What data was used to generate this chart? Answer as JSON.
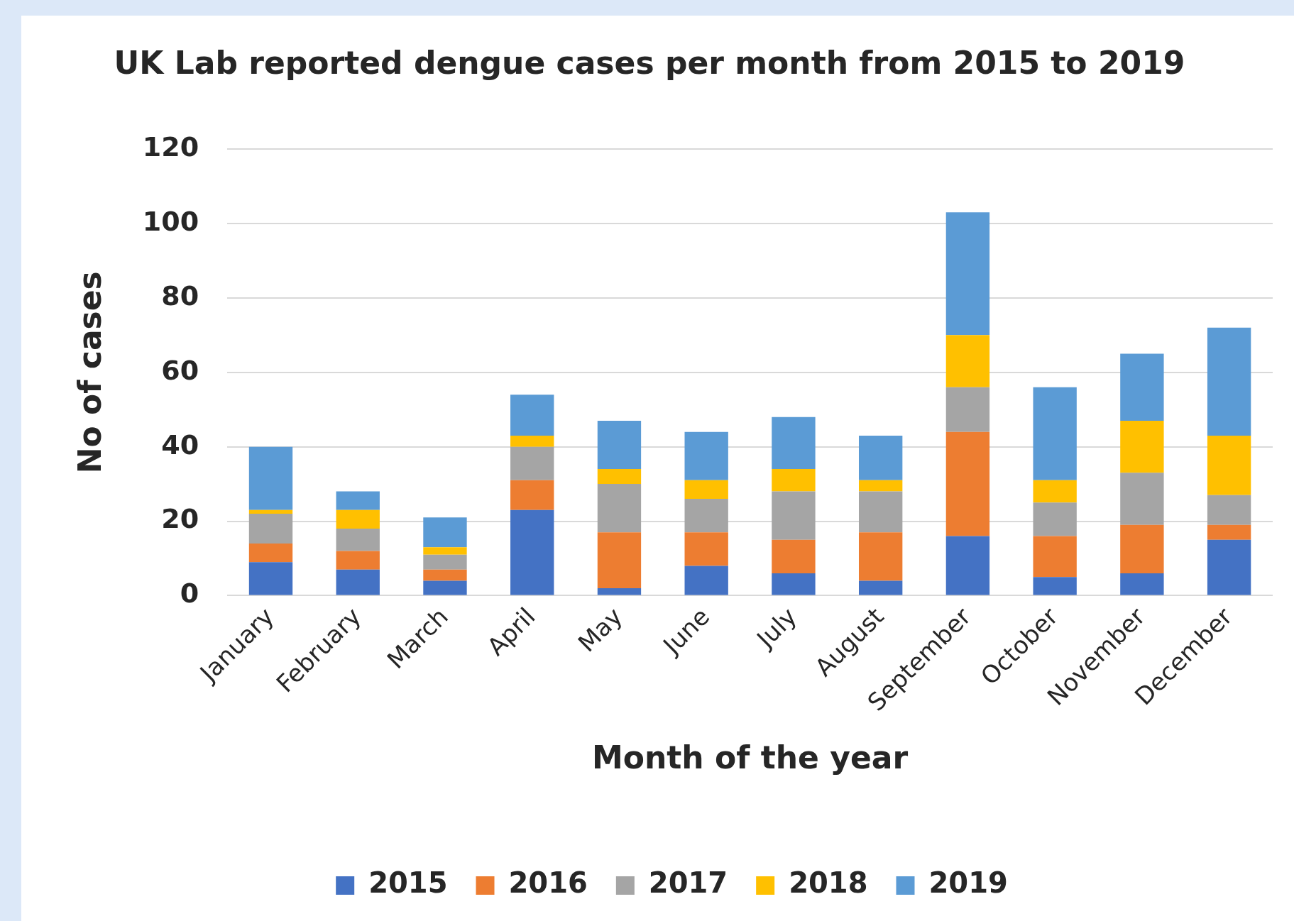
{
  "chart_data": {
    "type": "bar",
    "stacked": true,
    "title": "UK Lab reported dengue cases per month from 2015 to 2019",
    "xlabel": "Month of the year",
    "ylabel": "No of cases",
    "categories": [
      "January",
      "February",
      "March",
      "April",
      "May",
      "June",
      "July",
      "August",
      "September",
      "October",
      "November",
      "December"
    ],
    "series": [
      {
        "name": "2015",
        "color": "#4472c4",
        "values": [
          9,
          7,
          4,
          23,
          2,
          8,
          6,
          4,
          16,
          5,
          6,
          15
        ]
      },
      {
        "name": "2016",
        "color": "#ed7d31",
        "values": [
          5,
          5,
          3,
          8,
          15,
          9,
          9,
          13,
          28,
          11,
          13,
          4
        ]
      },
      {
        "name": "2017",
        "color": "#a5a5a5",
        "values": [
          8,
          6,
          4,
          9,
          13,
          9,
          13,
          11,
          12,
          9,
          14,
          8
        ]
      },
      {
        "name": "2018",
        "color": "#ffc000",
        "values": [
          1,
          5,
          2,
          3,
          4,
          5,
          6,
          3,
          14,
          6,
          14,
          16
        ]
      },
      {
        "name": "2019",
        "color": "#5b9bd5",
        "values": [
          17,
          5,
          8,
          11,
          13,
          13,
          14,
          12,
          33,
          25,
          18,
          29
        ]
      }
    ],
    "ylim": [
      0,
      120
    ],
    "yticks": [
      0,
      20,
      40,
      60,
      80,
      100,
      120
    ],
    "grid": "y",
    "legend": "bottom"
  }
}
